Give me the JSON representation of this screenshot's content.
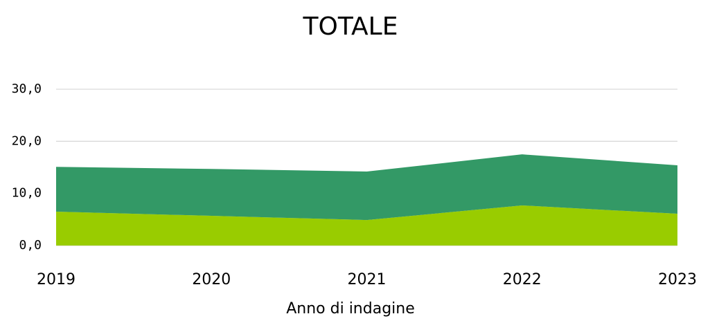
{
  "chart_data": {
    "type": "area",
    "title": "TOTALE",
    "x_label": "Anno di indagine",
    "categories": [
      "2019",
      "2020",
      "2021",
      "2022",
      "2023"
    ],
    "series": [
      {
        "color": "#99cc00",
        "values": [
          6.5,
          5.7,
          4.9,
          7.7,
          6.1
        ]
      },
      {
        "color": "#339966",
        "values": [
          8.6,
          9.0,
          9.3,
          9.8,
          9.3
        ]
      }
    ],
    "stacked": true,
    "ylim": [
      0,
      30
    ],
    "yticks": [
      {
        "value": 0,
        "label": "0,0"
      },
      {
        "value": 10,
        "label": "10,0"
      },
      {
        "value": 20,
        "label": "20,0"
      },
      {
        "value": 30,
        "label": "30,0"
      }
    ],
    "grid": true
  }
}
